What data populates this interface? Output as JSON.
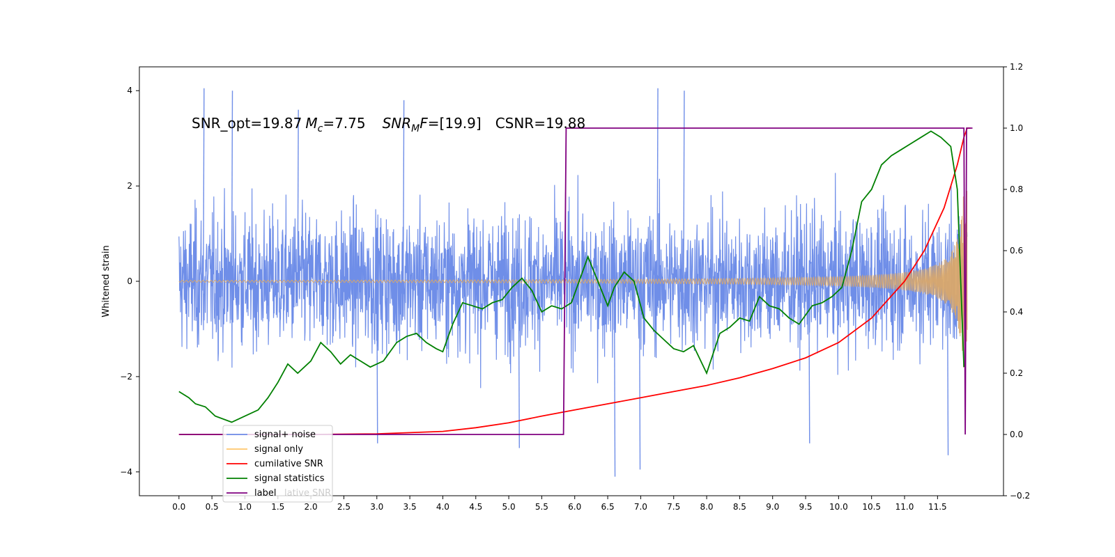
{
  "chart_data": {
    "type": "line",
    "title": "",
    "annotation": {
      "snr_opt": "SNR_opt=19.87",
      "mc_symbol": "M",
      "mc_sub": "c",
      "mc_value": "=7.75",
      "snrmf_symbol": "SNR",
      "snrmf_sub": "M",
      "snrmf_F": "F",
      "snrmf_value": "=[19.9]",
      "csnr": "CSNR=19.88"
    },
    "xlabel": "",
    "ylabel": "Whitened strain",
    "ylabel_right": "",
    "xlim": [
      -0.6,
      12.5
    ],
    "ylim": [
      -4.5,
      4.5
    ],
    "ylim_right": [
      -0.2,
      1.2
    ],
    "xticks": [
      "0.0",
      "0.5",
      "1.0",
      "1.5",
      "2.0",
      "2.5",
      "3.0",
      "3.5",
      "4.0",
      "4.5",
      "5.0",
      "5.5",
      "6.0",
      "6.5",
      "7.0",
      "7.5",
      "8.0",
      "8.5",
      "9.0",
      "9.5",
      "10.0",
      "10.5",
      "11.0",
      "11.5"
    ],
    "yticks_left": [
      "-4",
      "-2",
      "0",
      "2",
      "4"
    ],
    "yticks_right": [
      "-0.2",
      "0.0",
      "0.2",
      "0.4",
      "0.6",
      "0.8",
      "1.0",
      "1.2"
    ],
    "grid": false,
    "legend_position": "lower-left",
    "legend": [
      {
        "label": "signal+ noise",
        "color": "#6f8ee8"
      },
      {
        "label": "signal only",
        "color": "#ffc66b"
      },
      {
        "label": "cumilative SNR",
        "color": "#ff0000"
      },
      {
        "label": "signal statistics",
        "color": "#008000"
      },
      {
        "label": "label",
        "color": "#800080"
      }
    ],
    "legend_overlap_text": "lative SNR",
    "series": [
      {
        "name": "signal+ noise",
        "axis": "left",
        "color": "#6f8ee8",
        "description_envelope_sigma": 1.0,
        "peaks": [
          [
            0.37,
            4.05
          ],
          [
            0.8,
            4.0
          ],
          [
            1.8,
            3.6
          ],
          [
            3.4,
            3.8
          ],
          [
            7.25,
            4.05
          ],
          [
            7.65,
            4.0
          ],
          [
            6.6,
            -4.1
          ],
          [
            6.98,
            -3.95
          ],
          [
            5.15,
            -3.5
          ],
          [
            3.0,
            -3.4
          ],
          [
            11.65,
            -3.65
          ],
          [
            9.55,
            -3.4
          ]
        ]
      },
      {
        "name": "signal only",
        "axis": "left",
        "color": "#d9a86a",
        "chirp_end": 11.95,
        "amplitude_start": 0.02,
        "amplitude_end": 1.9
      },
      {
        "name": "cumilative SNR",
        "axis": "right",
        "color": "#ff0000",
        "x": [
          0.0,
          1.0,
          2.0,
          3.0,
          4.0,
          4.5,
          5.0,
          5.5,
          6.0,
          6.5,
          7.0,
          7.5,
          8.0,
          8.5,
          9.0,
          9.5,
          10.0,
          10.5,
          11.0,
          11.3,
          11.6,
          11.8,
          11.9,
          11.95,
          12.0
        ],
        "values": [
          0.0,
          0.0,
          0.0,
          0.002,
          0.01,
          0.022,
          0.038,
          0.06,
          0.08,
          0.1,
          0.12,
          0.14,
          0.16,
          0.185,
          0.215,
          0.25,
          0.3,
          0.38,
          0.5,
          0.6,
          0.74,
          0.88,
          0.97,
          1.0,
          1.0
        ]
      },
      {
        "name": "signal statistics",
        "axis": "right",
        "color": "#008000",
        "x": [
          0.0,
          0.15,
          0.25,
          0.4,
          0.55,
          0.8,
          1.0,
          1.2,
          1.35,
          1.5,
          1.65,
          1.8,
          2.0,
          2.15,
          2.3,
          2.45,
          2.6,
          2.75,
          2.9,
          3.1,
          3.3,
          3.45,
          3.6,
          3.75,
          3.9,
          4.0,
          4.15,
          4.3,
          4.45,
          4.6,
          4.75,
          4.9,
          5.05,
          5.2,
          5.35,
          5.5,
          5.65,
          5.8,
          5.95,
          6.1,
          6.2,
          6.35,
          6.5,
          6.6,
          6.75,
          6.9,
          7.05,
          7.2,
          7.35,
          7.5,
          7.65,
          7.8,
          8.0,
          8.2,
          8.35,
          8.5,
          8.65,
          8.8,
          8.95,
          9.1,
          9.25,
          9.4,
          9.6,
          9.75,
          9.9,
          10.05,
          10.2,
          10.35,
          10.5,
          10.65,
          10.8,
          10.95,
          11.1,
          11.25,
          11.4,
          11.55,
          11.7,
          11.8,
          11.9
        ],
        "values": [
          0.14,
          0.12,
          0.1,
          0.09,
          0.06,
          0.04,
          0.06,
          0.08,
          0.12,
          0.17,
          0.23,
          0.2,
          0.24,
          0.3,
          0.27,
          0.23,
          0.26,
          0.24,
          0.22,
          0.24,
          0.3,
          0.32,
          0.33,
          0.3,
          0.28,
          0.27,
          0.36,
          0.43,
          0.42,
          0.41,
          0.43,
          0.44,
          0.48,
          0.51,
          0.47,
          0.4,
          0.42,
          0.41,
          0.43,
          0.52,
          0.58,
          0.5,
          0.42,
          0.48,
          0.53,
          0.5,
          0.38,
          0.34,
          0.31,
          0.28,
          0.27,
          0.29,
          0.2,
          0.33,
          0.35,
          0.38,
          0.37,
          0.45,
          0.42,
          0.41,
          0.38,
          0.36,
          0.42,
          0.43,
          0.45,
          0.48,
          0.6,
          0.76,
          0.8,
          0.88,
          0.91,
          0.93,
          0.95,
          0.97,
          0.99,
          0.97,
          0.94,
          0.8,
          0.22
        ]
      },
      {
        "name": "label",
        "axis": "right",
        "color": "#800080",
        "x": [
          0.0,
          5.83,
          5.87,
          11.9,
          11.92,
          11.94,
          11.97,
          12.03
        ],
        "values": [
          0.0,
          0.0,
          1.0,
          1.0,
          0.0,
          1.0,
          1.0,
          1.0
        ]
      }
    ]
  }
}
